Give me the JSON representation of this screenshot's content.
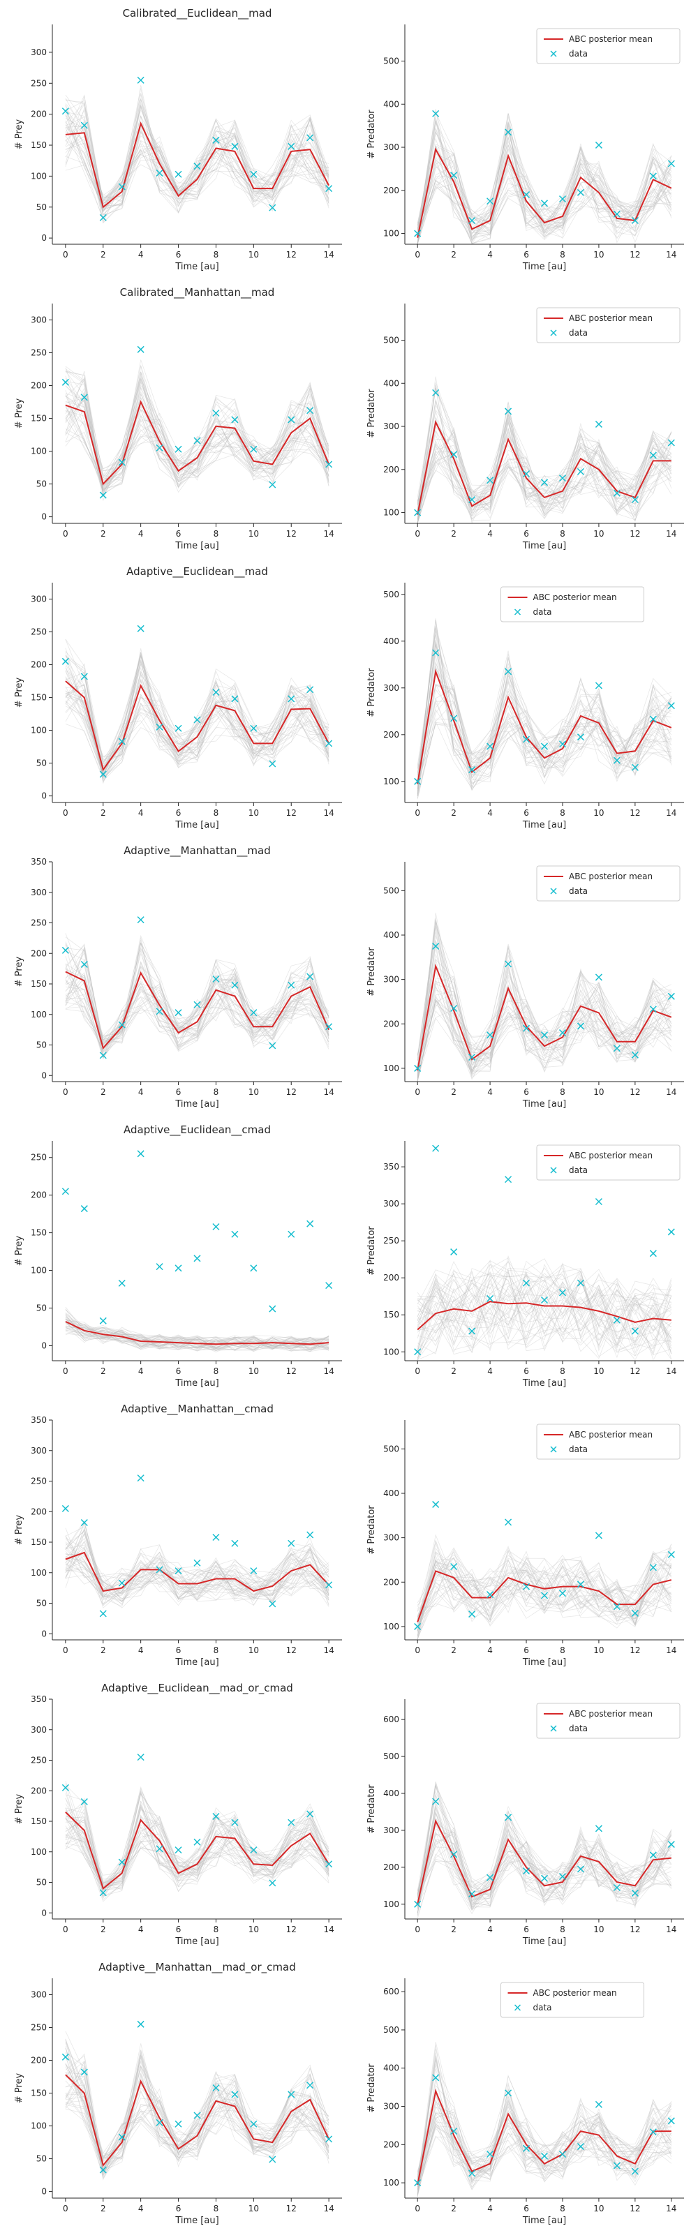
{
  "figure": {
    "xlabel": "Time [au]",
    "prey_ylabel": "# Prey",
    "predator_ylabel": "# Predator",
    "legend_posterior": "ABC posterior mean",
    "legend_data": "data",
    "colors": {
      "posterior": "#d62728",
      "data": "#17becf",
      "samples": "#bdbdbd",
      "axis": "#262626"
    }
  },
  "chart_data": [
    {
      "type": "line",
      "title": "Calibrated__Euclidean__mad",
      "prey": {
        "xlim": [
          -0.7,
          14.7
        ],
        "ylim": [
          -10,
          345
        ],
        "xticks": [
          0,
          2,
          4,
          6,
          8,
          10,
          12,
          14
        ],
        "yticks": [
          0,
          50,
          100,
          150,
          200,
          250,
          300
        ],
        "data": [
          205,
          182,
          33,
          83,
          255,
          105,
          103,
          116,
          158,
          148,
          103,
          49,
          148,
          162,
          80
        ],
        "mean": [
          167,
          170,
          50,
          75,
          185,
          120,
          68,
          95,
          145,
          140,
          80,
          80,
          140,
          143,
          85
        ]
      },
      "predator": {
        "xlim": [
          -0.7,
          14.7
        ],
        "ylim": [
          75,
          585
        ],
        "xticks": [
          0,
          2,
          4,
          6,
          8,
          10,
          12,
          14
        ],
        "yticks": [
          100,
          200,
          300,
          400,
          500
        ],
        "data": [
          100,
          378,
          235,
          130,
          175,
          335,
          190,
          170,
          180,
          195,
          305,
          145,
          130,
          233,
          262
        ],
        "mean": [
          90,
          295,
          220,
          110,
          130,
          280,
          175,
          125,
          140,
          230,
          195,
          135,
          130,
          225,
          205
        ]
      },
      "legend_on": "predator",
      "legend_position": "top-right"
    },
    {
      "type": "line",
      "title": "Calibrated__Manhattan__mad",
      "prey": {
        "xlim": [
          -0.7,
          14.7
        ],
        "ylim": [
          -10,
          325
        ],
        "xticks": [
          0,
          2,
          4,
          6,
          8,
          10,
          12,
          14
        ],
        "yticks": [
          0,
          50,
          100,
          150,
          200,
          250,
          300
        ],
        "data": [
          205,
          182,
          33,
          83,
          255,
          105,
          103,
          116,
          158,
          148,
          103,
          49,
          148,
          162,
          80
        ],
        "mean": [
          170,
          160,
          50,
          80,
          175,
          115,
          70,
          90,
          138,
          135,
          85,
          80,
          128,
          150,
          80
        ]
      },
      "predator": {
        "xlim": [
          -0.7,
          14.7
        ],
        "ylim": [
          75,
          585
        ],
        "xticks": [
          0,
          2,
          4,
          6,
          8,
          10,
          12,
          14
        ],
        "yticks": [
          100,
          200,
          300,
          400,
          500
        ],
        "data": [
          100,
          378,
          235,
          130,
          175,
          335,
          190,
          170,
          180,
          195,
          305,
          145,
          130,
          233,
          262
        ],
        "mean": [
          95,
          310,
          225,
          115,
          140,
          270,
          180,
          135,
          150,
          225,
          200,
          150,
          135,
          220,
          220
        ]
      },
      "legend_on": "predator",
      "legend_position": "top-right"
    },
    {
      "type": "line",
      "title": "Adaptive__Euclidean__mad",
      "prey": {
        "xlim": [
          -0.7,
          14.7
        ],
        "ylim": [
          -10,
          325
        ],
        "xticks": [
          0,
          2,
          4,
          6,
          8,
          10,
          12,
          14
        ],
        "yticks": [
          0,
          50,
          100,
          150,
          200,
          250,
          300
        ],
        "data": [
          205,
          182,
          33,
          83,
          255,
          105,
          103,
          116,
          158,
          148,
          103,
          49,
          148,
          162,
          80
        ],
        "mean": [
          175,
          150,
          40,
          80,
          168,
          115,
          68,
          90,
          138,
          130,
          80,
          80,
          132,
          133,
          80
        ]
      },
      "predator": {
        "xlim": [
          -0.7,
          14.7
        ],
        "ylim": [
          55,
          525
        ],
        "xticks": [
          0,
          2,
          4,
          6,
          8,
          10,
          12,
          14
        ],
        "yticks": [
          100,
          200,
          300,
          400,
          500
        ],
        "data": [
          100,
          375,
          235,
          125,
          175,
          335,
          190,
          175,
          180,
          195,
          305,
          145,
          130,
          233,
          262
        ],
        "mean": [
          95,
          335,
          230,
          120,
          150,
          280,
          195,
          150,
          170,
          240,
          225,
          160,
          165,
          230,
          215
        ]
      },
      "legend_on": "predator",
      "legend_position": "top-center"
    },
    {
      "type": "line",
      "title": "Adaptive__Manhattan__mad",
      "prey": {
        "xlim": [
          -0.7,
          14.7
        ],
        "ylim": [
          -10,
          350
        ],
        "xticks": [
          0,
          2,
          4,
          6,
          8,
          10,
          12,
          14
        ],
        "yticks": [
          0,
          50,
          100,
          150,
          200,
          250,
          300,
          350
        ],
        "data": [
          205,
          182,
          33,
          83,
          255,
          105,
          103,
          116,
          158,
          148,
          103,
          49,
          148,
          162,
          80
        ],
        "mean": [
          170,
          155,
          45,
          80,
          168,
          115,
          70,
          88,
          140,
          130,
          80,
          80,
          130,
          145,
          75
        ]
      },
      "predator": {
        "xlim": [
          -0.7,
          14.7
        ],
        "ylim": [
          70,
          565
        ],
        "xticks": [
          0,
          2,
          4,
          6,
          8,
          10,
          12,
          14
        ],
        "yticks": [
          100,
          200,
          300,
          400,
          500
        ],
        "data": [
          100,
          375,
          235,
          125,
          175,
          335,
          190,
          175,
          180,
          195,
          305,
          145,
          130,
          233,
          262
        ],
        "mean": [
          95,
          330,
          230,
          120,
          150,
          280,
          195,
          150,
          170,
          240,
          225,
          160,
          160,
          230,
          215
        ]
      },
      "legend_on": "predator",
      "legend_position": "top-right"
    },
    {
      "type": "line",
      "title": "Adaptive__Euclidean__cmad",
      "prey": {
        "xlim": [
          -0.7,
          14.7
        ],
        "ylim": [
          -20,
          272
        ],
        "xticks": [
          0,
          2,
          4,
          6,
          8,
          10,
          12,
          14
        ],
        "yticks": [
          0,
          50,
          100,
          150,
          200,
          250
        ],
        "data": [
          205,
          182,
          33,
          83,
          255,
          105,
          103,
          116,
          158,
          148,
          103,
          49,
          148,
          162,
          80
        ],
        "mean": [
          32,
          20,
          15,
          12,
          6,
          5,
          4,
          3,
          2,
          3,
          3,
          4,
          3,
          2,
          4
        ]
      },
      "predator": {
        "xlim": [
          -0.7,
          14.7
        ],
        "ylim": [
          88,
          385
        ],
        "xticks": [
          0,
          2,
          4,
          6,
          8,
          10,
          12,
          14
        ],
        "yticks": [
          100,
          150,
          200,
          250,
          300,
          350
        ],
        "data": [
          100,
          375,
          235,
          128,
          172,
          333,
          193,
          170,
          180,
          193,
          303,
          143,
          128,
          233,
          262
        ],
        "mean": [
          130,
          152,
          158,
          155,
          168,
          165,
          166,
          162,
          162,
          160,
          155,
          148,
          140,
          145,
          143
        ]
      },
      "legend_on": "predator",
      "legend_position": "top-right"
    },
    {
      "type": "line",
      "title": "Adaptive__Manhattan__cmad",
      "prey": {
        "xlim": [
          -0.7,
          14.7
        ],
        "ylim": [
          -10,
          350
        ],
        "xticks": [
          0,
          2,
          4,
          6,
          8,
          10,
          12,
          14
        ],
        "yticks": [
          0,
          50,
          100,
          150,
          200,
          250,
          300,
          350
        ],
        "data": [
          205,
          182,
          33,
          83,
          255,
          105,
          103,
          116,
          158,
          148,
          103,
          49,
          148,
          162,
          80
        ],
        "mean": [
          122,
          133,
          70,
          75,
          105,
          105,
          82,
          82,
          90,
          90,
          70,
          78,
          103,
          113,
          80
        ]
      },
      "predator": {
        "xlim": [
          -0.7,
          14.7
        ],
        "ylim": [
          70,
          565
        ],
        "xticks": [
          0,
          2,
          4,
          6,
          8,
          10,
          12,
          14
        ],
        "yticks": [
          100,
          200,
          300,
          400,
          500
        ],
        "data": [
          100,
          375,
          235,
          128,
          172,
          335,
          190,
          170,
          175,
          195,
          305,
          145,
          130,
          233,
          262
        ],
        "mean": [
          110,
          225,
          210,
          165,
          165,
          210,
          195,
          185,
          190,
          190,
          180,
          150,
          150,
          195,
          205
        ]
      },
      "legend_on": "predator",
      "legend_position": "top-right"
    },
    {
      "type": "line",
      "title": "Adaptive__Euclidean__mad_or_cmad",
      "prey": {
        "xlim": [
          -0.7,
          14.7
        ],
        "ylim": [
          -10,
          350
        ],
        "xticks": [
          0,
          2,
          4,
          6,
          8,
          10,
          12,
          14
        ],
        "yticks": [
          0,
          50,
          100,
          150,
          200,
          250,
          300,
          350
        ],
        "data": [
          205,
          182,
          33,
          83,
          255,
          105,
          103,
          116,
          158,
          148,
          103,
          49,
          148,
          162,
          80
        ],
        "mean": [
          165,
          135,
          40,
          65,
          152,
          118,
          65,
          80,
          125,
          122,
          80,
          78,
          110,
          130,
          80
        ]
      },
      "predator": {
        "xlim": [
          -0.7,
          14.7
        ],
        "ylim": [
          60,
          655
        ],
        "xticks": [
          0,
          2,
          4,
          6,
          8,
          10,
          12,
          14
        ],
        "yticks": [
          100,
          200,
          300,
          400,
          500,
          600
        ],
        "data": [
          100,
          378,
          235,
          128,
          172,
          335,
          190,
          170,
          175,
          195,
          305,
          145,
          130,
          233,
          262
        ],
        "mean": [
          100,
          325,
          230,
          120,
          140,
          275,
          200,
          150,
          160,
          230,
          215,
          160,
          150,
          220,
          225
        ]
      },
      "legend_on": "predator",
      "legend_position": "top-right"
    },
    {
      "type": "line",
      "title": "Adaptive__Manhattan__mad_or_cmad",
      "prey": {
        "xlim": [
          -0.7,
          14.7
        ],
        "ylim": [
          -10,
          325
        ],
        "xticks": [
          0,
          2,
          4,
          6,
          8,
          10,
          12,
          14
        ],
        "yticks": [
          0,
          50,
          100,
          150,
          200,
          250,
          300
        ],
        "data": [
          205,
          182,
          33,
          83,
          255,
          105,
          103,
          116,
          158,
          148,
          103,
          49,
          148,
          162,
          80
        ],
        "mean": [
          178,
          150,
          40,
          75,
          168,
          112,
          65,
          85,
          138,
          130,
          80,
          75,
          122,
          140,
          80
        ]
      },
      "predator": {
        "xlim": [
          -0.7,
          14.7
        ],
        "ylim": [
          60,
          635
        ],
        "xticks": [
          0,
          2,
          4,
          6,
          8,
          10,
          12,
          14
        ],
        "yticks": [
          100,
          200,
          300,
          400,
          500,
          600
        ],
        "data": [
          100,
          375,
          235,
          125,
          175,
          335,
          190,
          170,
          175,
          195,
          305,
          145,
          130,
          233,
          262
        ],
        "mean": [
          95,
          340,
          225,
          130,
          150,
          280,
          200,
          150,
          175,
          235,
          225,
          170,
          150,
          235,
          235
        ]
      },
      "legend_on": "predator",
      "legend_position": "top-center"
    }
  ]
}
